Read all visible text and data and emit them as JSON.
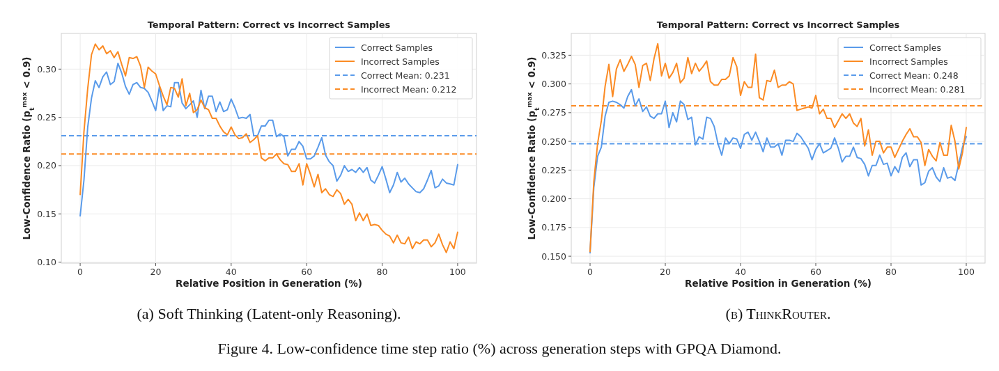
{
  "chart_data": [
    {
      "type": "line",
      "title": "Temporal Pattern: Correct vs Incorrect Samples",
      "xlabel": "Relative Position in Generation (%)",
      "ylabel": "Low-Confidence Ratio (p$_{t}$$^{max}$ < 0.9)",
      "x": [
        0,
        1,
        2,
        3,
        4,
        5,
        6,
        7,
        8,
        9,
        10,
        11,
        12,
        13,
        14,
        15,
        16,
        17,
        18,
        19,
        20,
        21,
        22,
        23,
        24,
        25,
        26,
        27,
        28,
        29,
        30,
        31,
        32,
        33,
        34,
        35,
        36,
        37,
        38,
        39,
        40,
        41,
        42,
        43,
        44,
        45,
        46,
        47,
        48,
        49,
        50,
        51,
        52,
        53,
        54,
        55,
        56,
        57,
        58,
        59,
        60,
        61,
        62,
        63,
        64,
        65,
        66,
        67,
        68,
        69,
        70,
        71,
        72,
        73,
        74,
        75,
        76,
        77,
        78,
        79,
        80,
        81,
        82,
        83,
        84,
        85,
        86,
        87,
        88,
        89,
        90,
        91,
        92,
        93,
        94,
        95,
        96,
        97,
        98,
        99,
        100
      ],
      "series": [
        {
          "name": "Correct Samples",
          "color": "#5a9bea",
          "values": [
            0.148,
            0.185,
            0.24,
            0.27,
            0.288,
            0.281,
            0.292,
            0.297,
            0.284,
            0.287,
            0.306,
            0.296,
            0.282,
            0.274,
            0.284,
            0.286,
            0.281,
            0.28,
            0.276,
            0.267,
            0.257,
            0.282,
            0.257,
            0.262,
            0.261,
            0.286,
            0.286,
            0.265,
            0.259,
            0.263,
            0.267,
            0.25,
            0.278,
            0.259,
            0.272,
            0.272,
            0.256,
            0.266,
            0.256,
            0.258,
            0.269,
            0.26,
            0.249,
            0.25,
            0.249,
            0.253,
            0.231,
            0.231,
            0.241,
            0.241,
            0.247,
            0.247,
            0.23,
            0.233,
            0.23,
            0.21,
            0.217,
            0.217,
            0.225,
            0.22,
            0.207,
            0.207,
            0.21,
            0.219,
            0.229,
            0.211,
            0.204,
            0.2,
            0.184,
            0.19,
            0.2,
            0.194,
            0.196,
            0.193,
            0.198,
            0.193,
            0.198,
            0.185,
            0.182,
            0.19,
            0.199,
            0.186,
            0.172,
            0.18,
            0.193,
            0.183,
            0.187,
            0.181,
            0.177,
            0.173,
            0.172,
            0.176,
            0.185,
            0.195,
            0.177,
            0.179,
            0.186,
            0.182,
            0.181,
            0.18,
            0.201
          ]
        },
        {
          "name": "Incorrect Samples",
          "color": "#fb8b24",
          "values": [
            0.17,
            0.235,
            0.28,
            0.315,
            0.326,
            0.32,
            0.324,
            0.316,
            0.319,
            0.312,
            0.318,
            0.305,
            0.293,
            0.312,
            0.311,
            0.313,
            0.303,
            0.281,
            0.302,
            0.298,
            0.295,
            0.283,
            0.272,
            0.263,
            0.281,
            0.28,
            0.271,
            0.29,
            0.262,
            0.275,
            0.255,
            0.258,
            0.268,
            0.26,
            0.258,
            0.249,
            0.249,
            0.241,
            0.235,
            0.232,
            0.24,
            0.232,
            0.228,
            0.229,
            0.233,
            0.224,
            0.227,
            0.231,
            0.208,
            0.205,
            0.208,
            0.208,
            0.212,
            0.206,
            0.202,
            0.201,
            0.194,
            0.194,
            0.202,
            0.18,
            0.202,
            0.191,
            0.178,
            0.191,
            0.172,
            0.176,
            0.17,
            0.168,
            0.175,
            0.171,
            0.16,
            0.165,
            0.16,
            0.143,
            0.151,
            0.143,
            0.15,
            0.138,
            0.139,
            0.138,
            0.133,
            0.129,
            0.127,
            0.12,
            0.128,
            0.12,
            0.119,
            0.126,
            0.114,
            0.121,
            0.119,
            0.123,
            0.123,
            0.116,
            0.12,
            0.129,
            0.118,
            0.11,
            0.121,
            0.114,
            0.131
          ]
        }
      ],
      "ref_lines": [
        {
          "axis": "y",
          "value": 0.231,
          "label": "Correct Mean: 0.231",
          "color": "#5a9bea",
          "line_style": "dashed"
        },
        {
          "axis": "y",
          "value": 0.212,
          "label": "Incorrect Mean: 0.212",
          "color": "#fb8b24",
          "line_style": "dashed"
        }
      ],
      "xlim": [
        -5,
        105
      ],
      "ylim": [
        0.099,
        0.337
      ],
      "xticks": [
        0,
        20,
        40,
        60,
        80,
        100
      ],
      "yticks": [
        {
          "value": 0.1,
          "label": "0.10"
        },
        {
          "value": 0.15,
          "label": "0.15"
        },
        {
          "value": 0.2,
          "label": "0.20"
        },
        {
          "value": 0.25,
          "label": "0.25"
        },
        {
          "value": 0.3,
          "label": "0.30"
        }
      ],
      "grid": true,
      "legend": "top right",
      "annotations": [
        "(a) Soft Thinking (Latent-only Reasoning).",
        "Figure 4. Low-confidence time step ratio (%) across generation steps with GPQA Diamond."
      ]
    },
    {
      "type": "line",
      "title": "Temporal Pattern: Correct vs Incorrect Samples",
      "xlabel": "Relative Position in Generation (%)",
      "ylabel": "Low-Confidence Ratio (p$_{t}$$^{max}$ < 0.9)",
      "x": [
        0,
        1,
        2,
        3,
        4,
        5,
        6,
        7,
        8,
        9,
        10,
        11,
        12,
        13,
        14,
        15,
        16,
        17,
        18,
        19,
        20,
        21,
        22,
        23,
        24,
        25,
        26,
        27,
        28,
        29,
        30,
        31,
        32,
        33,
        34,
        35,
        36,
        37,
        38,
        39,
        40,
        41,
        42,
        43,
        44,
        45,
        46,
        47,
        48,
        49,
        50,
        51,
        52,
        53,
        54,
        55,
        56,
        57,
        58,
        59,
        60,
        61,
        62,
        63,
        64,
        65,
        66,
        67,
        68,
        69,
        70,
        71,
        72,
        73,
        74,
        75,
        76,
        77,
        78,
        79,
        80,
        81,
        82,
        83,
        84,
        85,
        86,
        87,
        88,
        89,
        90,
        91,
        92,
        93,
        94,
        95,
        96,
        97,
        98,
        99,
        100
      ],
      "series": [
        {
          "name": "Correct Samples",
          "color": "#5a9bea",
          "values": [
            0.153,
            0.21,
            0.237,
            0.245,
            0.272,
            0.284,
            0.285,
            0.284,
            0.282,
            0.279,
            0.289,
            0.295,
            0.281,
            0.287,
            0.276,
            0.28,
            0.272,
            0.27,
            0.274,
            0.274,
            0.285,
            0.262,
            0.275,
            0.267,
            0.285,
            0.282,
            0.269,
            0.271,
            0.247,
            0.254,
            0.252,
            0.271,
            0.27,
            0.263,
            0.248,
            0.238,
            0.253,
            0.248,
            0.253,
            0.252,
            0.244,
            0.256,
            0.258,
            0.251,
            0.258,
            0.25,
            0.241,
            0.253,
            0.245,
            0.245,
            0.248,
            0.238,
            0.251,
            0.251,
            0.25,
            0.257,
            0.254,
            0.249,
            0.244,
            0.234,
            0.243,
            0.248,
            0.24,
            0.242,
            0.244,
            0.253,
            0.244,
            0.232,
            0.237,
            0.237,
            0.245,
            0.236,
            0.235,
            0.23,
            0.22,
            0.229,
            0.229,
            0.238,
            0.23,
            0.231,
            0.22,
            0.228,
            0.223,
            0.236,
            0.24,
            0.228,
            0.234,
            0.234,
            0.212,
            0.214,
            0.224,
            0.227,
            0.219,
            0.215,
            0.227,
            0.218,
            0.219,
            0.216,
            0.23,
            0.245,
            0.254
          ]
        },
        {
          "name": "Incorrect Samples",
          "color": "#fb8b24",
          "values": [
            0.154,
            0.215,
            0.248,
            0.268,
            0.298,
            0.317,
            0.289,
            0.313,
            0.321,
            0.311,
            0.317,
            0.324,
            0.317,
            0.297,
            0.316,
            0.318,
            0.303,
            0.322,
            0.335,
            0.307,
            0.318,
            0.305,
            0.31,
            0.318,
            0.301,
            0.305,
            0.323,
            0.309,
            0.318,
            0.311,
            0.315,
            0.32,
            0.302,
            0.299,
            0.299,
            0.304,
            0.304,
            0.307,
            0.323,
            0.315,
            0.29,
            0.302,
            0.297,
            0.297,
            0.326,
            0.288,
            0.286,
            0.303,
            0.302,
            0.312,
            0.297,
            0.299,
            0.299,
            0.302,
            0.3,
            0.277,
            0.278,
            0.279,
            0.28,
            0.279,
            0.29,
            0.274,
            0.278,
            0.27,
            0.27,
            0.262,
            0.268,
            0.274,
            0.27,
            0.274,
            0.266,
            0.263,
            0.27,
            0.246,
            0.26,
            0.238,
            0.25,
            0.25,
            0.24,
            0.245,
            0.245,
            0.236,
            0.243,
            0.25,
            0.256,
            0.261,
            0.254,
            0.254,
            0.249,
            0.229,
            0.243,
            0.237,
            0.233,
            0.249,
            0.238,
            0.238,
            0.264,
            0.25,
            0.226,
            0.24,
            0.262
          ]
        }
      ],
      "ref_lines": [
        {
          "axis": "y",
          "value": 0.248,
          "label": "Correct Mean: 0.248",
          "color": "#5a9bea",
          "line_style": "dashed"
        },
        {
          "axis": "y",
          "value": 0.281,
          "label": "Incorrect Mean: 0.281",
          "color": "#fb8b24",
          "line_style": "dashed"
        }
      ],
      "xlim": [
        -5,
        105
      ],
      "ylim": [
        0.144,
        0.344
      ],
      "xticks": [
        0,
        20,
        40,
        60,
        80,
        100
      ],
      "yticks": [
        {
          "value": 0.15,
          "label": "0.150"
        },
        {
          "value": 0.175,
          "label": "0.175"
        },
        {
          "value": 0.2,
          "label": "0.200"
        },
        {
          "value": 0.225,
          "label": "0.225"
        },
        {
          "value": 0.25,
          "label": "0.250"
        },
        {
          "value": 0.275,
          "label": "0.275"
        },
        {
          "value": 0.3,
          "label": "0.300"
        },
        {
          "value": 0.325,
          "label": "0.325"
        }
      ],
      "grid": true,
      "legend": "top right",
      "annotations": [
        "(b) ThinkRouter."
      ]
    }
  ]
}
